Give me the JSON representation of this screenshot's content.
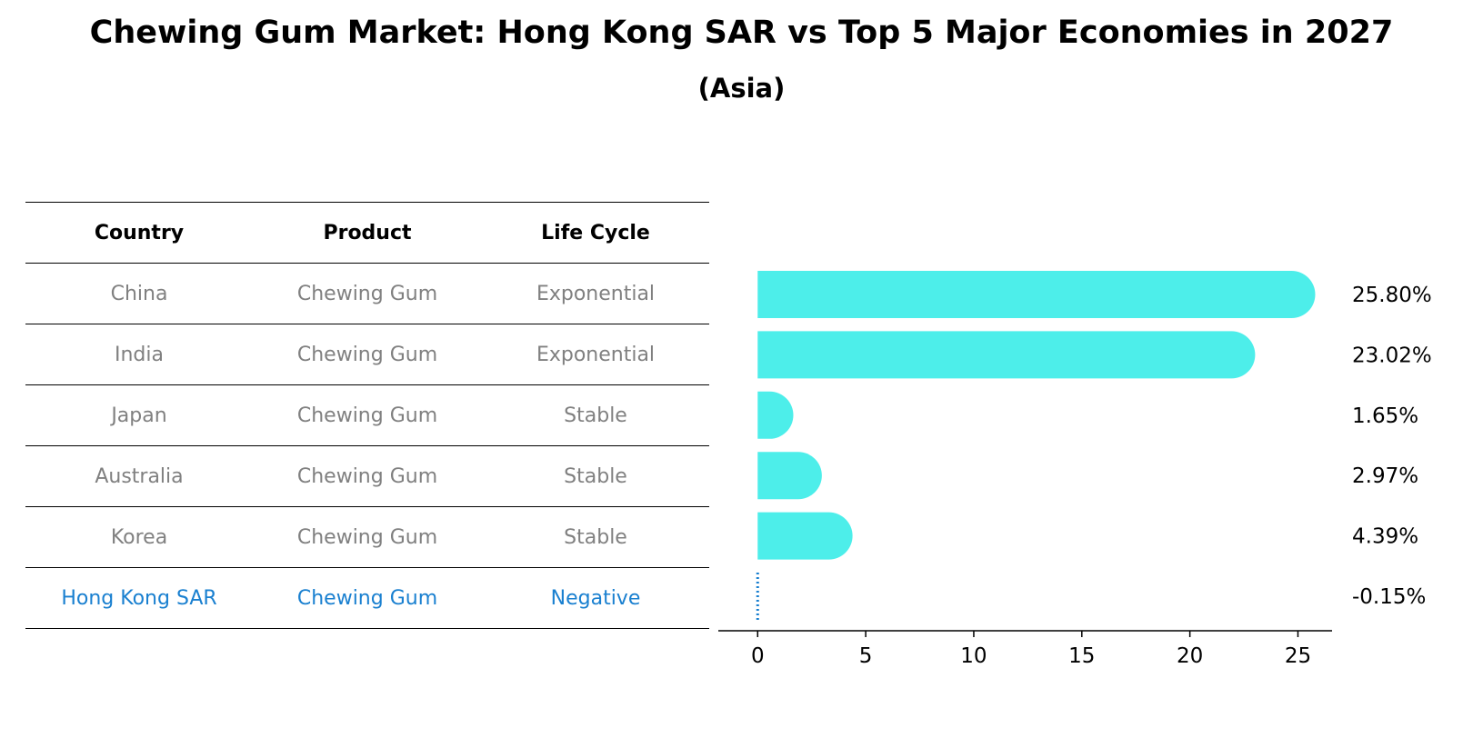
{
  "title": "Chewing Gum Market: Hong Kong SAR vs Top 5 Major Economies in 2027",
  "subtitle": "(Asia)",
  "table": {
    "headers": [
      "Country",
      "Product",
      "Life Cycle"
    ],
    "rows": [
      {
        "country": "China",
        "product": "Chewing Gum",
        "life_cycle": "Exponential"
      },
      {
        "country": "India",
        "product": "Chewing Gum",
        "life_cycle": "Exponential"
      },
      {
        "country": "Japan",
        "product": "Chewing Gum",
        "life_cycle": "Stable"
      },
      {
        "country": "Australia",
        "product": "Chewing Gum",
        "life_cycle": "Stable"
      },
      {
        "country": "Korea",
        "product": "Chewing Gum",
        "life_cycle": "Stable"
      },
      {
        "country": "Hong Kong SAR",
        "product": "Chewing Gum",
        "life_cycle": "Negative"
      }
    ]
  },
  "colors": {
    "bar": "#4deeea",
    "highlight": "#1a80d0",
    "muted_text": "#808080"
  },
  "chart_data": {
    "type": "bar",
    "orientation": "horizontal",
    "categories": [
      "China",
      "India",
      "Japan",
      "Australia",
      "Korea",
      "Hong Kong SAR"
    ],
    "values": [
      25.8,
      23.02,
      1.65,
      2.97,
      4.39,
      -0.15
    ],
    "value_labels": [
      "25.80%",
      "23.02%",
      "1.65%",
      "2.97%",
      "4.39%",
      "-0.15%"
    ],
    "xlim": [
      -1.4,
      27.0
    ],
    "xticks": [
      0,
      5,
      10,
      15,
      20,
      25
    ],
    "grid": false
  }
}
